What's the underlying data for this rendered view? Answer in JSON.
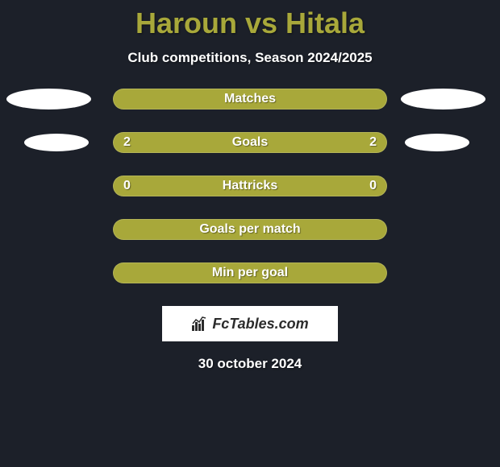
{
  "title": "Haroun vs Hitala",
  "subtitle": "Club competitions, Season 2024/2025",
  "date": "30 october 2024",
  "logo_text": "FcTables.com",
  "colors": {
    "background": "#1c2029",
    "title_color": "#a8a83a",
    "bar_color": "#a8a83a",
    "ellipse_color": "#ffffff",
    "text_color": "#ffffff",
    "logo_bg": "#ffffff",
    "logo_text": "#2c2c2c"
  },
  "stats": [
    {
      "label": "Matches",
      "left_value": "",
      "right_value": "",
      "bar_color": "#a8a83a",
      "left_ellipse_color": "#ffffff",
      "right_ellipse_color": "#ffffff",
      "ellipse_size": "large"
    },
    {
      "label": "Goals",
      "left_value": "2",
      "right_value": "2",
      "bar_color": "#a8a83a",
      "left_ellipse_color": "#ffffff",
      "right_ellipse_color": "#ffffff",
      "ellipse_size": "medium"
    },
    {
      "label": "Hattricks",
      "left_value": "0",
      "right_value": "0",
      "bar_color": "#a8a83a",
      "left_ellipse_color": "",
      "right_ellipse_color": "",
      "ellipse_size": "none"
    },
    {
      "label": "Goals per match",
      "left_value": "",
      "right_value": "",
      "bar_color": "#a8a83a",
      "left_ellipse_color": "",
      "right_ellipse_color": "",
      "ellipse_size": "none"
    },
    {
      "label": "Min per goal",
      "left_value": "",
      "right_value": "",
      "bar_color": "#a8a83a",
      "left_ellipse_color": "",
      "right_ellipse_color": "",
      "ellipse_size": "none"
    }
  ]
}
